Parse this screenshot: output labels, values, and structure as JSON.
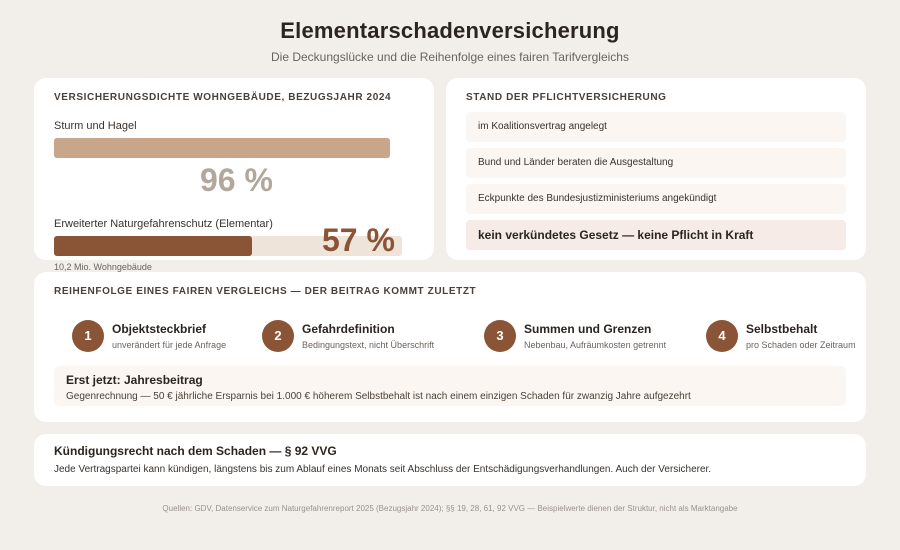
{
  "header": {
    "title": "Elementarschadenversicherung",
    "subtitle": "Die Deckungslücke und die Reihenfolge eines fairen Tarifvergleichs"
  },
  "density": {
    "heading": "Versicherungsdichte Wohngebäude, Bezugsjahr 2024",
    "bars": [
      {
        "label": "Sturm und Hagel",
        "value_text": "96 %",
        "value": 96,
        "fill_color": "#c9a58a",
        "track_color": "#efe4da",
        "text_color": "#b2a79c"
      },
      {
        "label": "Erweiterter Naturgefahrenschutz (Elementar)",
        "value_text": "57 %",
        "value": 57,
        "fill_color": "#8a5436",
        "track_color": "#efe4da",
        "text_color": "#8a5436"
      }
    ],
    "note": "10,2 Mio. Wohngebäude"
  },
  "status": {
    "heading": "Stand der Pflichtversicherung",
    "items": [
      "im Koalitionsvertrag angelegt",
      "Bund und Länder beraten die Ausgestaltung",
      "Eckpunkte des Bundesjustizministeriums angekündigt"
    ],
    "final": "kein verkündetes Gesetz — keine Pflicht in Kraft"
  },
  "order": {
    "heading": "Reihenfolge eines fairen Vergleichs — der Beitrag kommt zuletzt",
    "steps": [
      {
        "num": "1",
        "title": "Objektsteckbrief",
        "sub": "unverändert für jede Anfrage"
      },
      {
        "num": "2",
        "title": "Gefahrdefinition",
        "sub": "Bedingungstext, nicht Überschrift"
      },
      {
        "num": "3",
        "title": "Summen und Grenzen",
        "sub": "Nebenbau, Aufräumkosten getrennt"
      },
      {
        "num": "4",
        "title": "Selbstbehalt",
        "sub": "pro Schaden oder Zeitraum"
      }
    ],
    "final_title": "Erst jetzt: Jahresbeitrag",
    "final_text": "Gegenrechnung — 50 € jährliche Ersparnis bei 1.000 € höherem Selbstbehalt ist nach einem einzigen Schaden für zwanzig Jahre aufgezehrt"
  },
  "termination": {
    "title": "Kündigungsrecht nach dem Schaden — § 92 VVG",
    "text": "Jede Vertragspartei kann kündigen, längstens bis zum Ablauf eines Monats seit Abschluss der Entschädigungsverhandlungen. Auch der Versicherer."
  },
  "footer": "Quellen: GDV, Datenservice zum Naturgefahrenreport 2025 (Bezugsjahr 2024); §§ 19, 28, 61, 92 VVG — Beispielwerte dienen der Struktur, nicht als Marktangabe"
}
